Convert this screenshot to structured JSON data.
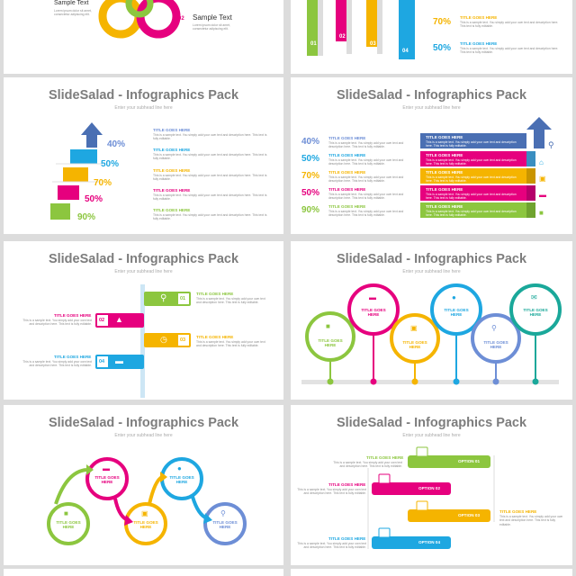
{
  "brand": {
    "title": "SlideSalad - Infographics Pack",
    "subtitle": "Enter your subhead line here"
  },
  "colors": {
    "green": "#8cc63f",
    "cyan": "#1ea7e1",
    "yellow": "#f5b400",
    "pink": "#e6007e",
    "blue": "#6d8ed6",
    "navy": "#4a6fb3",
    "gray": "#8c8c8c"
  },
  "icons": [
    "search-icon",
    "credit-card-icon",
    "truck-icon",
    "cart-icon",
    "user-icon",
    "chat-icon",
    "chart-icon",
    "clock-icon",
    "home-icon"
  ],
  "common": {
    "title_goes_here": "TITLE GOES HERE",
    "title_goes_here_line": "TITLE GOES\nHERE",
    "body": "This is a sample text. You simply add your own text and description here. This text is fully editable."
  },
  "s1": {
    "sample_left": "Sample Text",
    "sample_right": "Sample Text",
    "sample_body": "Lorem ipsum dolor sit amet, consectetur adipiscing elit.",
    "num": "02"
  },
  "s2": {
    "pcts": [
      "70%",
      "50%"
    ],
    "nums": [
      "01",
      "02",
      "03",
      "04"
    ]
  },
  "s3": {
    "pcts": [
      "40%",
      "50%",
      "70%",
      "50%",
      "90%"
    ]
  },
  "s4": {
    "pcts": [
      "40%",
      "50%",
      "70%",
      "50%",
      "90%"
    ]
  },
  "s5": {
    "nums": [
      "01",
      "02",
      "03",
      "04"
    ]
  },
  "s8": {
    "options": [
      "OPTION 01",
      "OPTION 02",
      "OPTION 03",
      "OPTION 04"
    ]
  }
}
